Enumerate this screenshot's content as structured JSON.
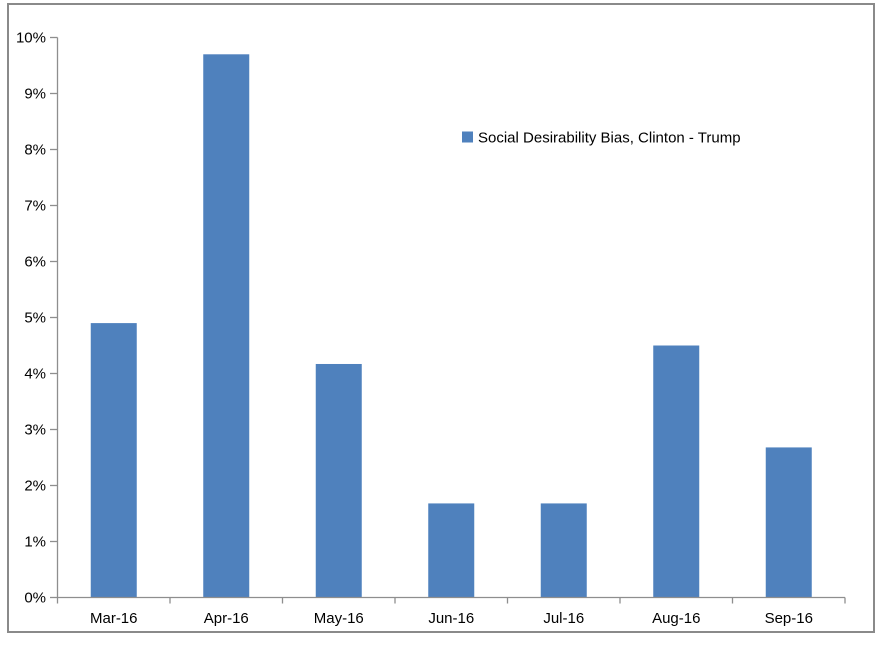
{
  "chart_data": {
    "type": "bar",
    "categories": [
      "Mar-16",
      "Apr-16",
      "May-16",
      "Jun-16",
      "Jul-16",
      "Aug-16",
      "Sep-16"
    ],
    "series": [
      {
        "name": "Social Desirability Bias, Clinton - Trump",
        "values": [
          4.9,
          9.7,
          4.17,
          1.68,
          1.68,
          4.5,
          2.68
        ]
      }
    ],
    "unit": "percent",
    "xlabel": "",
    "ylabel": "",
    "ylim": [
      0,
      10
    ],
    "ytick_step": 1,
    "ytick_labels": [
      "0%",
      "1%",
      "2%",
      "3%",
      "4%",
      "5%",
      "6%",
      "7%",
      "8%",
      "9%",
      "10%"
    ],
    "grid": false,
    "legend": {
      "position": "top-center",
      "swatch": "square"
    },
    "colors": {
      "bar": "#4F81BD",
      "axis": "#8E8E8E",
      "text": "#000000",
      "frame_border": "#8A8A8A",
      "background": "#FFFFFF"
    }
  }
}
